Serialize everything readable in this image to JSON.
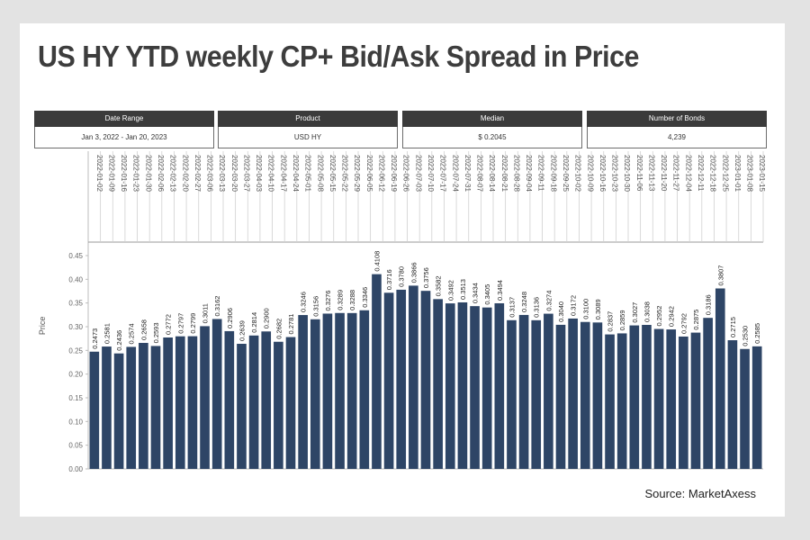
{
  "title": "US HY YTD weekly CP+ Bid/Ask Spread in Price",
  "filters": [
    {
      "label": "Date Range",
      "value": "Jan 3, 2022 - Jan 20, 2023"
    },
    {
      "label": "Product",
      "value": "USD HY"
    },
    {
      "label": "Median",
      "value": "$ 0.2045"
    },
    {
      "label": "Number of Bonds",
      "value": "4,239"
    }
  ],
  "source": "Source: MarketAxess",
  "colors": {
    "bar": "#2e4566",
    "header": "#3b3b3b",
    "grid": "#e6e6e6",
    "background": "#e3e3e3"
  },
  "chart_data": {
    "type": "bar",
    "ylabel": "Price",
    "ylim": [
      0,
      0.45
    ],
    "yticks": [
      "0.00",
      "0.05",
      "0.10",
      "0.15",
      "0.20",
      "0.25",
      "0.30",
      "0.35",
      "0.40",
      "0.45"
    ],
    "grid": false,
    "categories": [
      "2022-01-02",
      "2022-01-09",
      "2022-01-16",
      "2022-01-23",
      "2022-01-30",
      "2022-02-06",
      "2022-02-13",
      "2022-02-20",
      "2022-02-27",
      "2022-03-06",
      "2022-03-13",
      "2022-03-20",
      "2022-03-27",
      "2022-04-03",
      "2022-04-10",
      "2022-04-17",
      "2022-04-24",
      "2022-05-01",
      "2022-05-08",
      "2022-05-15",
      "2022-05-22",
      "2022-05-29",
      "2022-06-05",
      "2022-06-12",
      "2022-06-19",
      "2022-06-26",
      "2022-07-03",
      "2022-07-10",
      "2022-07-17",
      "2022-07-24",
      "2022-07-31",
      "2022-08-07",
      "2022-08-14",
      "2022-08-21",
      "2022-08-28",
      "2022-09-04",
      "2022-09-11",
      "2022-09-18",
      "2022-09-25",
      "2022-10-02",
      "2022-10-09",
      "2022-10-16",
      "2022-10-23",
      "2022-10-30",
      "2022-11-06",
      "2022-11-13",
      "2022-11-20",
      "2022-11-27",
      "2022-12-04",
      "2022-12-11",
      "2022-12-18",
      "2022-12-25",
      "2023-01-01",
      "2023-01-08",
      "2023-01-15"
    ],
    "values": [
      0.2473,
      0.2581,
      0.2436,
      0.2574,
      0.2658,
      0.2593,
      0.2772,
      0.2797,
      0.2799,
      0.3011,
      0.3162,
      0.2906,
      0.2639,
      0.2814,
      0.29,
      0.2682,
      0.2781,
      0.3246,
      0.3156,
      0.3276,
      0.3289,
      0.3288,
      0.3346,
      0.4108,
      0.3716,
      0.378,
      0.3866,
      0.3756,
      0.3582,
      0.3492,
      0.3513,
      0.3434,
      0.3405,
      0.3494,
      0.3137,
      0.3248,
      0.3136,
      0.3274,
      0.304,
      0.3172,
      0.31,
      0.3089,
      0.2837,
      0.2859,
      0.3027,
      0.3038,
      0.2952,
      0.2942,
      0.2792,
      0.2875,
      0.3186,
      0.3807,
      0.2715,
      0.253,
      0.2585
    ],
    "labels": [
      "0.2473",
      "0.2581",
      "0.2436",
      "0.2574",
      "0.2658",
      "0.2593",
      "0.2772",
      "0.2797",
      "0.2799",
      "0.3011",
      "0.3162",
      "0.2906",
      "0.2639",
      "0.2814",
      "0.2900",
      "0.2682",
      "0.2781",
      "0.3246",
      "0.3156",
      "0.3276",
      "0.3289",
      "0.3288",
      "0.3346",
      "0.4108",
      "0.3716",
      "0.3780",
      "0.3866",
      "0.3756",
      "0.3582",
      "0.3492",
      "0.3513",
      "0.3434",
      "0.3405",
      "0.3494",
      "0.3137",
      "0.3248",
      "0.3136",
      "0.3274",
      "0.3040",
      "0.3172",
      "0.3100",
      "0.3089",
      "0.2837",
      "0.2859",
      "0.3027",
      "0.3038",
      "0.2952",
      "0.2942",
      "0.2792",
      "0.2875",
      "0.3186",
      "0.3807",
      "0.2715",
      "0.2530",
      "0.2585"
    ]
  }
}
